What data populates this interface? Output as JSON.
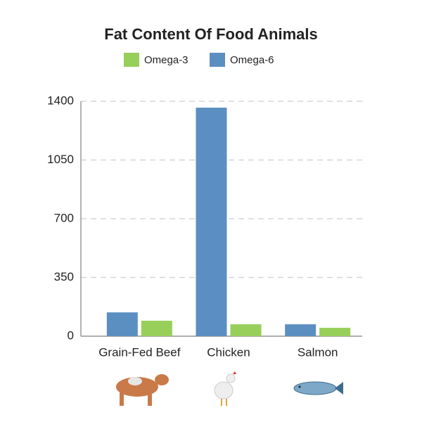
{
  "chart_data": {
    "type": "bar",
    "title": "Fat Content Of Food Animals",
    "categories": [
      "Grain-Fed Beef",
      "Chicken",
      "Salmon"
    ],
    "series": [
      {
        "name": "Omega-3",
        "color": "#97cf5a",
        "values": [
          92,
          71,
          50
        ]
      },
      {
        "name": "Omega-6",
        "color": "#5b8fc2",
        "values": [
          142,
          1362,
          71
        ]
      }
    ],
    "ylim": [
      0,
      1400
    ],
    "yticks": [
      0,
      350,
      700,
      1050,
      1400
    ],
    "grid": true
  }
}
